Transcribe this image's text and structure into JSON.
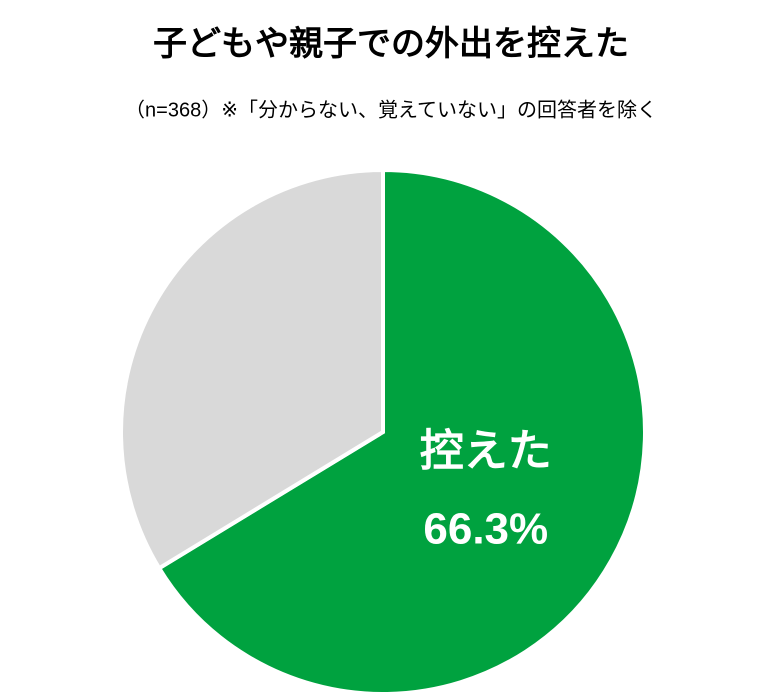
{
  "chart_data": {
    "type": "pie",
    "title": "子どもや親子での外出を控えた",
    "subtitle": "（n=368）※「分からない、覚えていない」の回答者を除く",
    "categories": [
      "控えた",
      null
    ],
    "values": [
      66.3,
      33.7
    ],
    "value_labels": [
      "66.3%",
      null
    ],
    "colors": [
      "#00a23f",
      "#d9d9d9"
    ]
  }
}
